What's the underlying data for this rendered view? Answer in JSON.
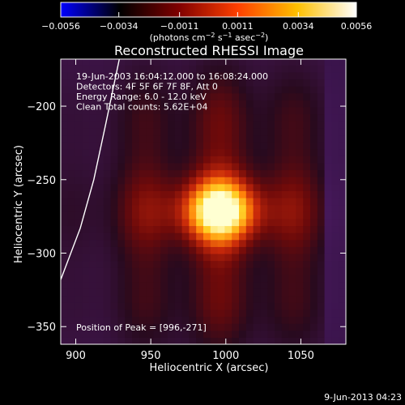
{
  "chart_data": {
    "type": "heatmap",
    "title": "Reconstructed RHESSI Image",
    "xlabel": "Heliocentric X (arcsec)",
    "ylabel": "Heliocentric Y (arcsec)",
    "xlim": [
      890,
      1080
    ],
    "ylim": [
      -362,
      -168
    ],
    "x_ticks": [
      900,
      950,
      1000,
      1050
    ],
    "y_ticks": [
      -200,
      -250,
      -300,
      -350
    ],
    "x_tick_labels": [
      "900",
      "950",
      "1000",
      "1050"
    ],
    "y_tick_labels": [
      "−200",
      "−250",
      "−300",
      "−350"
    ],
    "colorbar": {
      "min": -0.0056,
      "max": 0.0056,
      "ticks": [
        -0.0056,
        -0.0034,
        -0.0011,
        0.0011,
        0.0034,
        0.0056
      ],
      "tick_labels": [
        "−0.0056",
        "−0.0034",
        "−0.0011",
        "0.0011",
        "0.0034",
        "0.0056"
      ],
      "unit_prefix": "(photons cm",
      "unit_exp1": "−2",
      "unit_mid": " s",
      "unit_exp2": "−1",
      "unit_mid2": " asec",
      "unit_exp3": "−2",
      "unit_suffix": ")",
      "colors": [
        "#0000ff",
        "#000000",
        "#800000",
        "#ff4000",
        "#ffc000",
        "#ffffff"
      ]
    },
    "info_lines": [
      "19-Jun-2003 16:04:12.000 to 16:08:24.000",
      "Detectors: 4F 5F 6F 7F 8F, Att 0",
      "Energy Range: 6.0 - 12.0 keV",
      "Clean     Total counts: 5.62E+04"
    ],
    "peak_label": "Position of Peak = [996,-271]",
    "peak": [
      996,
      -271
    ],
    "limb_curve": [
      [
        929,
        -168
      ],
      [
        920,
        -212
      ],
      [
        912,
        -250
      ],
      [
        903,
        -283
      ],
      [
        890,
        -318
      ]
    ],
    "grid": false,
    "legend": "none"
  },
  "footer_date": "9-Jun-2013 04:23"
}
